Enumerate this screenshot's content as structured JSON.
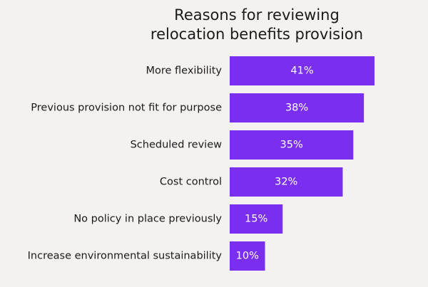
{
  "chart_data": {
    "type": "bar",
    "orientation": "horizontal",
    "title_lines": [
      "Reasons for reviewing",
      "relocation benefits provision"
    ],
    "categories": [
      "More flexibility",
      "Previous provision not fit for purpose",
      "Scheduled review",
      "Cost control",
      "No policy in place previously",
      "Increase environmental sustainability"
    ],
    "values": [
      41,
      38,
      35,
      32,
      15,
      10
    ],
    "value_labels": [
      "41%",
      "38%",
      "35%",
      "32%",
      "15%",
      "10%"
    ],
    "xlim": [
      0,
      41
    ],
    "grid": false,
    "legend": "none",
    "bar_color": "#7a2ff0",
    "background_color": "#f3f2f1"
  }
}
